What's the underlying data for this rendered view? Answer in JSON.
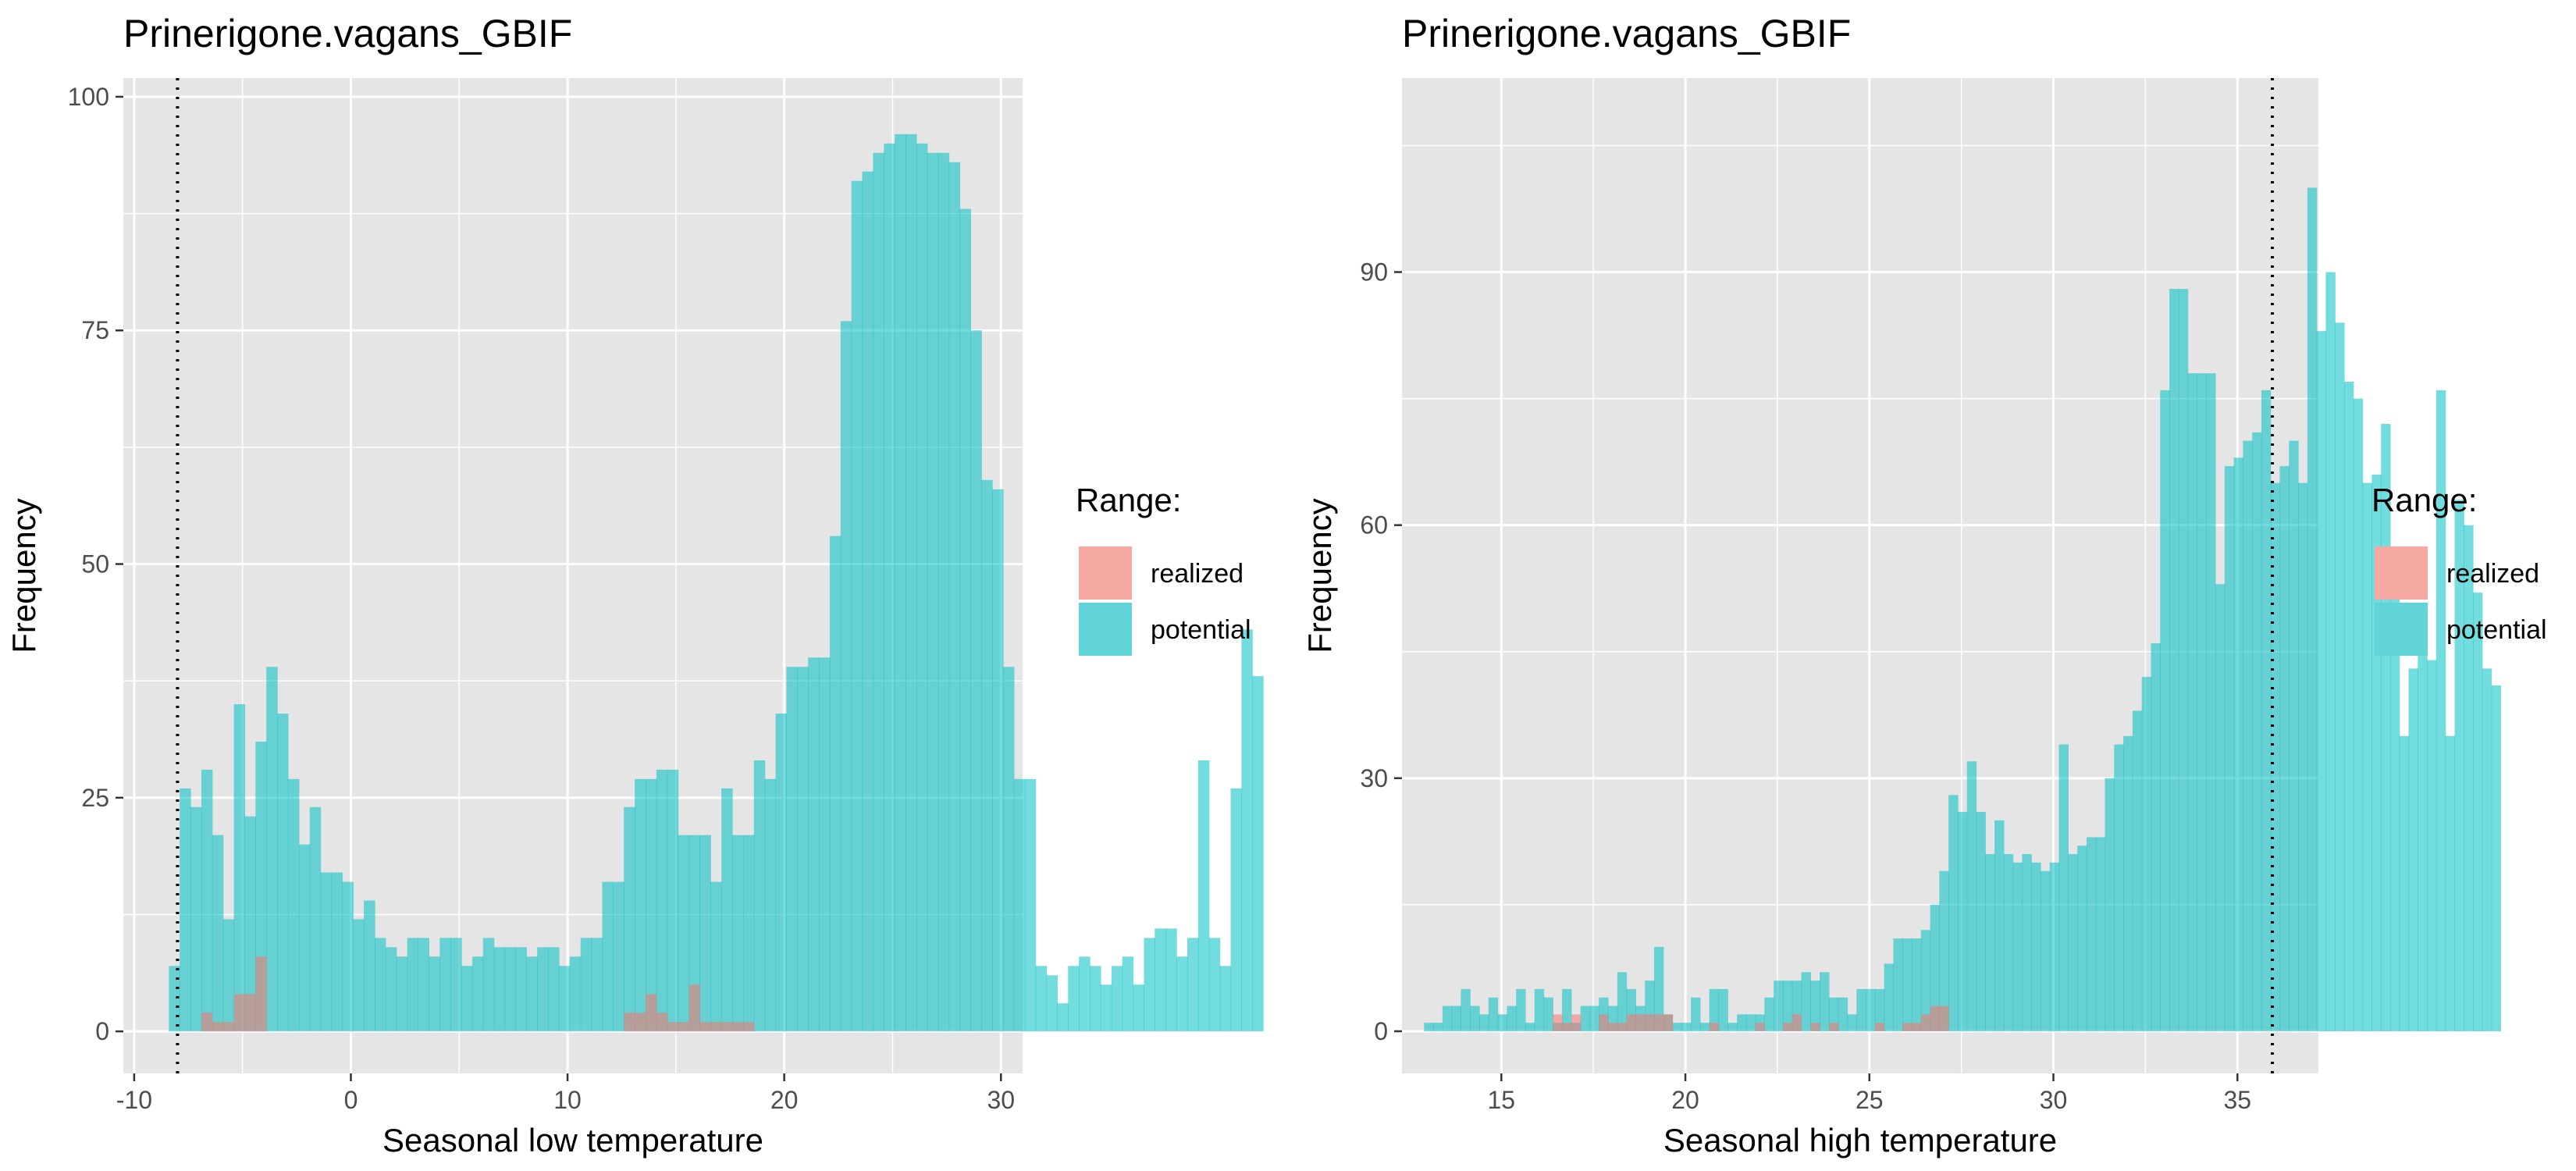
{
  "colors": {
    "panel_background": "#e5e5e5",
    "grid": "#ffffff",
    "realized": "#F8766D",
    "potential": "#00BFC4",
    "potential_alpha": 0.55,
    "realized_alpha": 0.55,
    "tick_label": "#4d4d4d"
  },
  "chart_data": [
    {
      "type": "bar",
      "title": "Prinerigone.vagans_GBIF",
      "xlabel": "Seasonal low temperature",
      "ylabel": "Frequency",
      "xlim": [
        -10.5,
        31
      ],
      "ylim": [
        -4.5,
        102
      ],
      "x_ticks": [
        -10,
        0,
        10,
        20,
        30
      ],
      "x_tick_labels": [
        "-10",
        "0",
        "10",
        "20",
        "30"
      ],
      "y_ticks": [
        0,
        25,
        50,
        75,
        100
      ],
      "y_tick_labels": [
        "0",
        "25",
        "50",
        "75",
        "100"
      ],
      "grid": true,
      "vline_dotted_x": -8.0,
      "bin_start": -8.4,
      "bin_width": 0.5,
      "series": [
        {
          "name": "potential",
          "values": [
            7,
            26,
            24,
            28,
            21,
            12,
            35,
            23,
            31,
            39,
            34,
            27,
            20,
            24,
            17,
            17,
            16,
            12,
            14,
            10,
            9,
            8,
            10,
            10,
            8,
            10,
            10,
            7,
            8,
            10,
            9,
            9,
            9,
            8,
            9,
            9,
            7,
            8,
            10,
            10,
            16,
            16,
            24,
            27,
            27,
            28,
            28,
            21,
            21,
            21,
            16,
            26,
            21,
            21,
            29,
            27,
            34,
            39,
            39,
            40,
            40,
            53,
            76,
            91,
            92,
            94,
            95,
            96,
            96,
            95,
            94,
            94,
            93,
            88,
            75,
            59,
            58,
            39,
            27,
            27,
            7,
            6,
            3,
            7,
            8,
            7,
            5,
            7,
            8,
            5,
            10,
            11,
            11,
            8,
            10,
            29,
            10,
            7,
            26,
            43,
            38
          ]
        },
        {
          "name": "realized",
          "values": [
            0,
            0,
            0,
            2,
            1,
            1,
            4,
            4,
            8,
            0,
            0,
            0,
            0,
            0,
            0,
            0,
            0,
            0,
            0,
            0,
            0,
            0,
            0,
            0,
            0,
            0,
            0,
            0,
            0,
            0,
            0,
            0,
            0,
            0,
            0,
            0,
            0,
            0,
            0,
            0,
            0,
            0,
            2,
            2,
            4,
            2,
            1,
            1,
            5,
            1,
            1,
            1,
            1,
            1,
            0,
            0,
            0,
            0,
            0,
            0,
            0,
            0,
            0,
            0,
            0,
            0,
            0,
            0,
            0,
            0,
            0,
            0,
            0,
            0,
            0,
            0,
            0,
            0,
            0,
            0,
            0,
            0,
            0,
            0,
            0,
            0,
            0,
            0,
            0,
            0,
            0,
            0,
            0,
            0,
            0,
            0,
            0,
            0,
            0,
            0,
            0
          ]
        }
      ]
    },
    {
      "type": "bar",
      "title": "Prinerigone.vagans_GBIF",
      "xlabel": "Seasonal high temperature",
      "ylabel": "Frequency",
      "xlim": [
        12.3,
        37.2
      ],
      "ylim": [
        -5,
        113
      ],
      "x_ticks": [
        15,
        20,
        25,
        30,
        35
      ],
      "x_tick_labels": [
        "15",
        "20",
        "25",
        "30",
        "35"
      ],
      "y_ticks": [
        0,
        30,
        60,
        90
      ],
      "y_tick_labels": [
        "0",
        "30",
        "60",
        "90"
      ],
      "grid": true,
      "vline_dotted_x": 35.95,
      "bin_start": 12.9,
      "bin_width": 0.25,
      "series": [
        {
          "name": "potential",
          "values": [
            1,
            1,
            3,
            3,
            5,
            3,
            2,
            4,
            2,
            3,
            5,
            1,
            5,
            4,
            1,
            5,
            1,
            3,
            3,
            4,
            3,
            7,
            5,
            3,
            6,
            10,
            2,
            1,
            1,
            4,
            1,
            5,
            5,
            1,
            2,
            2,
            2,
            4,
            6,
            6,
            6,
            7,
            6,
            7,
            4,
            4,
            2,
            5,
            5,
            5,
            8,
            11,
            11,
            11,
            12,
            15,
            19,
            28,
            26,
            32,
            26,
            21,
            25,
            21,
            20,
            21,
            20,
            19,
            20,
            34,
            21,
            22,
            23,
            23,
            30,
            34,
            35,
            38,
            42,
            46,
            76,
            88,
            88,
            78,
            78,
            78,
            53,
            67,
            68,
            70,
            71,
            76,
            65,
            67,
            70,
            65,
            100,
            83,
            90,
            84,
            77,
            75,
            65,
            66,
            72,
            57,
            35,
            43,
            45,
            44,
            76,
            35,
            63,
            60,
            52,
            43,
            41
          ]
        },
        {
          "name": "realized",
          "values": [
            0,
            0,
            0,
            0,
            0,
            0,
            0,
            0,
            0,
            0,
            0,
            0,
            0,
            0,
            2,
            1,
            2,
            0,
            0,
            2,
            1,
            1,
            2,
            2,
            2,
            2,
            2,
            0,
            0,
            0,
            0,
            1,
            0,
            0,
            0,
            0,
            1,
            0,
            0,
            1,
            2,
            0,
            1,
            0,
            1,
            0,
            0,
            0,
            0,
            1,
            0,
            0,
            1,
            1,
            2,
            3,
            3,
            0,
            0,
            0,
            0,
            0,
            0,
            0,
            0,
            0,
            0,
            0,
            0,
            0,
            0,
            0,
            0,
            0,
            0,
            0,
            0,
            0,
            0,
            0,
            0,
            0,
            0,
            0,
            0,
            0,
            0,
            0,
            0,
            0,
            0,
            0,
            0,
            0,
            0,
            0,
            0,
            0,
            0,
            0,
            0,
            0,
            0,
            0,
            0,
            0,
            0,
            0,
            0,
            0,
            0,
            0,
            0,
            0,
            0,
            0,
            0
          ]
        }
      ]
    }
  ],
  "legend": {
    "title": "Range:",
    "items": [
      {
        "label": "realized",
        "color": "#F8766D"
      },
      {
        "label": "potential",
        "color": "#00BFC4"
      }
    ]
  }
}
